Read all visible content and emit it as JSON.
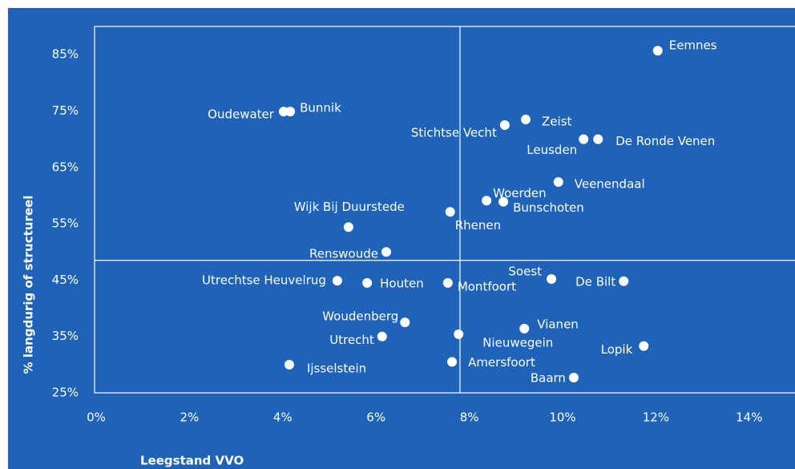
{
  "chart_data": {
    "type": "scatter",
    "xlabel": "Leegstand VVO",
    "ylabel": "% langdurig of structureel",
    "xlim": [
      0,
      15
    ],
    "ylim": [
      25,
      90
    ],
    "xticks": [
      {
        "value": 0,
        "label": "0%"
      },
      {
        "value": 2,
        "label": "2%"
      },
      {
        "value": 4,
        "label": "4%"
      },
      {
        "value": 6,
        "label": "6%"
      },
      {
        "value": 8,
        "label": "8%"
      },
      {
        "value": 10,
        "label": "10%"
      },
      {
        "value": 12,
        "label": "12%"
      },
      {
        "value": 14,
        "label": "14%"
      }
    ],
    "yticks": [
      {
        "value": 25,
        "label": "25%"
      },
      {
        "value": 35,
        "label": "35%"
      },
      {
        "value": 45,
        "label": "45%"
      },
      {
        "value": 55,
        "label": "55%"
      },
      {
        "value": 65,
        "label": "65%"
      },
      {
        "value": 75,
        "label": "75%"
      },
      {
        "value": 85,
        "label": "85%"
      }
    ],
    "reference_lines": {
      "x": 7.8,
      "y": 48.5
    },
    "background": "#1e63b8",
    "color": "#ffffff",
    "labels": [
      "Eemnes",
      "Oudewater",
      "Bunnik",
      "Stichtse Vecht",
      "Zeist",
      "Leusden",
      "De Ronde Venen",
      "Veenendaal",
      "Woerden",
      "Bunschoten",
      "Rhenen",
      "Wijk Bij Duurstede",
      "Renswoude",
      "Utrechtse Heuvelrug",
      "Houten",
      "Montfoort",
      "Soest",
      "De Bilt",
      "Woudenberg",
      "Utrecht",
      "Nieuwegein",
      "Vianen",
      "Lopik",
      "Ijsselstein",
      "Amersfoort",
      "Baarn"
    ],
    "x": [
      12.04,
      4.02,
      4.16,
      8.76,
      9.21,
      10.45,
      10.76,
      9.91,
      8.37,
      8.73,
      7.59,
      5.41,
      6.22,
      5.17,
      5.81,
      7.54,
      9.76,
      11.31,
      6.62,
      6.13,
      7.77,
      9.18,
      11.74,
      4.14,
      7.63,
      10.24
    ],
    "values": [
      85.7,
      74.9,
      74.9,
      72.5,
      73.5,
      70.0,
      70.0,
      62.4,
      59.1,
      58.9,
      57.1,
      54.4,
      50.0,
      44.9,
      44.5,
      44.5,
      45.2,
      44.8,
      37.5,
      35.0,
      35.4,
      36.4,
      33.3,
      30.0,
      30.5,
      27.7
    ]
  }
}
